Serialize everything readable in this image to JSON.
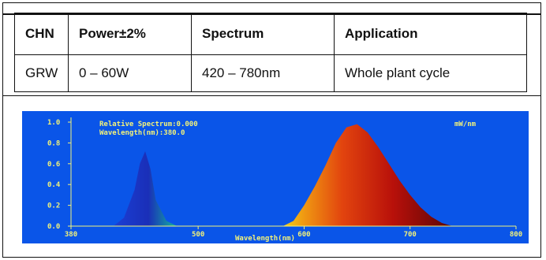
{
  "table": {
    "headers": [
      "CHN",
      "Power±2%",
      "Spectrum",
      "Application"
    ],
    "rows": [
      [
        "GRW",
        "0 – 60W",
        "420 – 780nm",
        "Whole plant cycle"
      ]
    ]
  },
  "chart_data": {
    "type": "area",
    "header_left_1": "Relative Spectrum:0.000",
    "header_left_2": "Wavelength(nm):380.0",
    "header_right": "mW/nm",
    "xlabel": "Wavelength(nm)",
    "xlim": [
      380,
      800
    ],
    "ylim": [
      0,
      1.0
    ],
    "x_ticks": [
      "380",
      "500",
      "600",
      "700",
      "800"
    ],
    "y_ticks": [
      "1.0",
      "0.8",
      "0.6",
      "0.4",
      "0.2",
      "0.0"
    ],
    "series": [
      {
        "x": [
          420,
          430,
          440,
          445,
          450,
          455,
          460,
          470,
          480
        ],
        "y": [
          0.0,
          0.08,
          0.35,
          0.6,
          0.72,
          0.55,
          0.25,
          0.05,
          0.0
        ]
      },
      {
        "x": [
          580,
          590,
          600,
          610,
          620,
          630,
          640,
          650,
          660,
          670,
          680,
          690,
          700,
          710,
          720,
          730,
          740
        ],
        "y": [
          0.0,
          0.05,
          0.2,
          0.38,
          0.58,
          0.8,
          0.95,
          0.98,
          0.9,
          0.76,
          0.6,
          0.44,
          0.3,
          0.18,
          0.09,
          0.03,
          0.0
        ]
      }
    ],
    "colors": {
      "background": "#0a55e8",
      "axis": "#f2f27a",
      "text": "#f2f27a"
    }
  }
}
